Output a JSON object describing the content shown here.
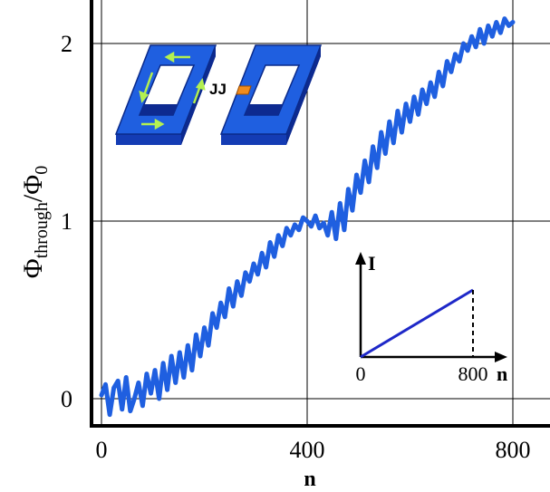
{
  "chart_data": {
    "type": "line",
    "xlabel": "n",
    "ylabel": "Φ",
    "ylabel_subscript": "through",
    "ylabel_denominator": "Φ",
    "ylabel_denominator_subscript": "0",
    "xlim": [
      -15,
      815
    ],
    "ylim": [
      -0.15,
      2.22
    ],
    "x_ticks": [
      0,
      400,
      800
    ],
    "x_tick_labels": [
      "0",
      "400",
      "800"
    ],
    "y_ticks": [
      0,
      1,
      2
    ],
    "y_tick_labels": [
      "0",
      "1",
      "2"
    ],
    "grid": true,
    "series": [
      {
        "color": "#1f5fe0",
        "x": [
          0,
          8,
          16,
          24,
          32,
          40,
          48,
          56,
          64,
          72,
          80,
          88,
          96,
          104,
          112,
          120,
          128,
          136,
          144,
          152,
          160,
          168,
          176,
          184,
          192,
          200,
          208,
          216,
          224,
          232,
          240,
          248,
          256,
          264,
          272,
          280,
          288,
          296,
          304,
          312,
          320,
          328,
          336,
          344,
          352,
          360,
          368,
          376,
          384,
          392,
          400,
          408,
          416,
          424,
          432,
          440,
          448,
          456,
          464,
          472,
          480,
          488,
          496,
          504,
          512,
          520,
          528,
          536,
          544,
          552,
          560,
          568,
          576,
          584,
          592,
          600,
          608,
          616,
          624,
          632,
          640,
          648,
          656,
          664,
          672,
          680,
          688,
          696,
          704,
          712,
          720,
          728,
          736,
          744,
          752,
          760,
          768,
          776,
          784,
          792,
          800
        ],
        "y": [
          0.02,
          0.08,
          -0.09,
          0.06,
          0.1,
          -0.06,
          0.12,
          -0.07,
          0.0,
          0.09,
          -0.04,
          0.14,
          0.03,
          0.16,
          0.0,
          0.2,
          0.05,
          0.24,
          0.09,
          0.26,
          0.12,
          0.3,
          0.16,
          0.36,
          0.24,
          0.4,
          0.3,
          0.48,
          0.4,
          0.54,
          0.46,
          0.62,
          0.52,
          0.66,
          0.58,
          0.71,
          0.66,
          0.76,
          0.7,
          0.82,
          0.74,
          0.88,
          0.8,
          0.92,
          0.86,
          0.96,
          0.92,
          0.98,
          0.95,
          1.02,
          1.0,
          0.97,
          1.03,
          0.96,
          0.99,
          0.92,
          1.05,
          0.9,
          1.1,
          0.95,
          1.18,
          1.06,
          1.26,
          1.16,
          1.34,
          1.22,
          1.42,
          1.3,
          1.5,
          1.38,
          1.56,
          1.44,
          1.62,
          1.5,
          1.66,
          1.56,
          1.7,
          1.6,
          1.74,
          1.66,
          1.78,
          1.7,
          1.84,
          1.76,
          1.9,
          1.84,
          1.94,
          1.9,
          2.0,
          1.96,
          2.04,
          1.98,
          2.08,
          2.0,
          2.1,
          2.04,
          2.12,
          2.06,
          2.14,
          2.1,
          2.12
        ]
      }
    ],
    "inset_plot": {
      "type": "line",
      "xlabel": "n",
      "ylabel": "I",
      "x_tick_labels": [
        "0",
        "800"
      ],
      "series": [
        {
          "color": "#1e28c8",
          "x": [
            0,
            800
          ],
          "y": [
            0,
            1
          ]
        }
      ]
    },
    "inset_diagram": {
      "junction_label": "JJ",
      "ring_color": "#1f5fe0",
      "junction_color": "#f08c1e",
      "arrow_color": "#b4f050"
    }
  }
}
